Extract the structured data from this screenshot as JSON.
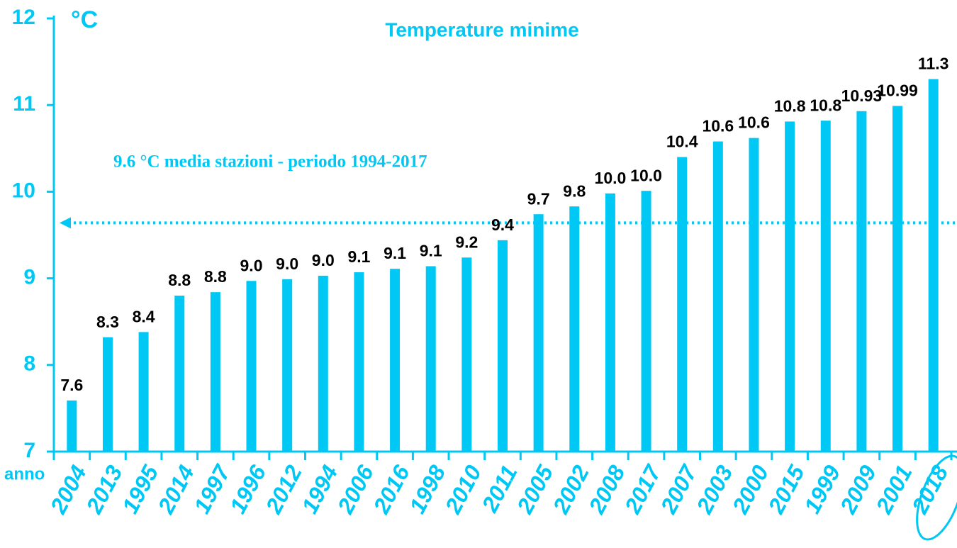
{
  "chart_data": {
    "type": "bar",
    "title": "Temperature minime",
    "y_label": "°C",
    "x_label": "anno",
    "categories": [
      "2004",
      "2013",
      "1995",
      "2014",
      "1997",
      "1996",
      "2012",
      "1994",
      "2006",
      "2016",
      "1998",
      "2010",
      "2011",
      "2005",
      "2002",
      "2008",
      "2017",
      "2007",
      "2003",
      "2000",
      "2015",
      "1999",
      "2009",
      "2001",
      "2018"
    ],
    "values": [
      7.59,
      8.32,
      8.38,
      8.8,
      8.84,
      8.97,
      8.99,
      9.03,
      9.07,
      9.11,
      9.14,
      9.24,
      9.44,
      9.74,
      9.83,
      9.98,
      10.01,
      10.4,
      10.58,
      10.62,
      10.81,
      10.82,
      10.93,
      10.99,
      11.3
    ],
    "value_labels": [
      "7.6",
      "8.3",
      "8.4",
      "8.8",
      "8.8",
      "9.0",
      "9.0",
      "9.0",
      "9.1",
      "9.1",
      "9.1",
      "9.2",
      "9.4",
      "9.7",
      "9.8",
      "10.0",
      "10.0",
      "10.4",
      "10.6",
      "10.6",
      "10.8",
      "10.8",
      "10.93",
      "10.99",
      "11.3"
    ],
    "color": "#00c8f5",
    "ylim": [
      7,
      12
    ],
    "yticks": [
      7,
      8,
      9,
      10,
      11,
      12
    ],
    "reference_line": {
      "value": 9.64,
      "label": "9.6 °C media stazioni - periodo 1994-2017"
    }
  }
}
